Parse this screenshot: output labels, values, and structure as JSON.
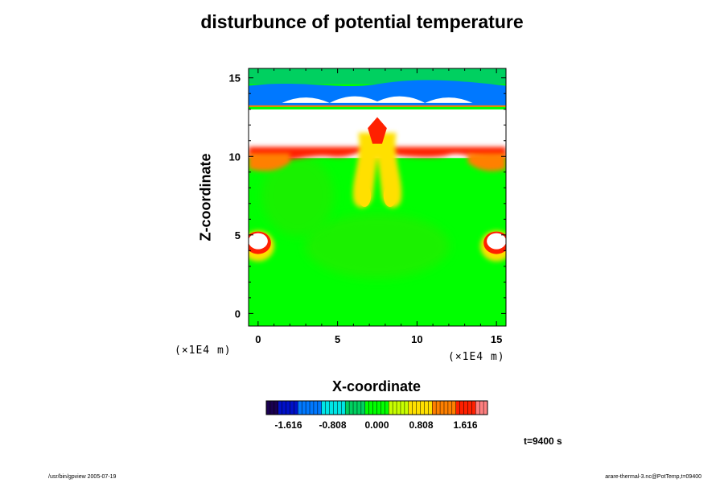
{
  "chart_data": {
    "type": "heatmap",
    "title": "disturbunce of potential temperature",
    "xlabel": "X-coordinate",
    "ylabel": "Z-coordinate",
    "x_unit": "(×1E4 m)",
    "y_unit": "(×1E4 m)",
    "xlim": [
      -0.6,
      15.6
    ],
    "ylim": [
      -0.8,
      15.6
    ],
    "x_ticks": [
      0,
      5,
      10,
      15
    ],
    "y_ticks": [
      0,
      5,
      10,
      15
    ],
    "colorbar": {
      "min": -2.02,
      "max": 2.02,
      "tick_values": [
        -1.616,
        -0.808,
        0.0,
        0.808,
        1.616
      ],
      "tick_labels": [
        "-1.616",
        "-0.808",
        "0.000",
        "0.808",
        "1.616"
      ],
      "colors": [
        "#1a0050",
        "#0010c8",
        "#0078ff",
        "#00e6e6",
        "#00d060",
        "#00ff00",
        "#c8ff00",
        "#ffe000",
        "#ff8000",
        "#ff2000",
        "#ff8080"
      ]
    },
    "background_value": 0.0,
    "features": [
      {
        "label": "upper blue layer",
        "value": -1.2,
        "x_range": [
          -0.6,
          15.6
        ],
        "z_range": [
          13.2,
          14.5
        ]
      },
      {
        "label": "central red plume",
        "value": 1.4,
        "x": 7.5,
        "z_range": [
          6.5,
          12.5
        ]
      },
      {
        "label": "left warm anomaly",
        "value": 1.6,
        "x": 0,
        "z": 4.5
      },
      {
        "label": "right warm anomaly",
        "value": 1.6,
        "x": 15,
        "z": 4.5
      },
      {
        "label": "saturated region",
        "value": 2.2,
        "x_range": [
          -0.6,
          15.6
        ],
        "z_range": [
          10,
          13
        ]
      }
    ]
  },
  "time_label": "t=9400 s",
  "footer_left": "/usr/bin/gpview 2005-07-19",
  "footer_right": "arare-thermal-3.nc@PotTemp,t=09400"
}
